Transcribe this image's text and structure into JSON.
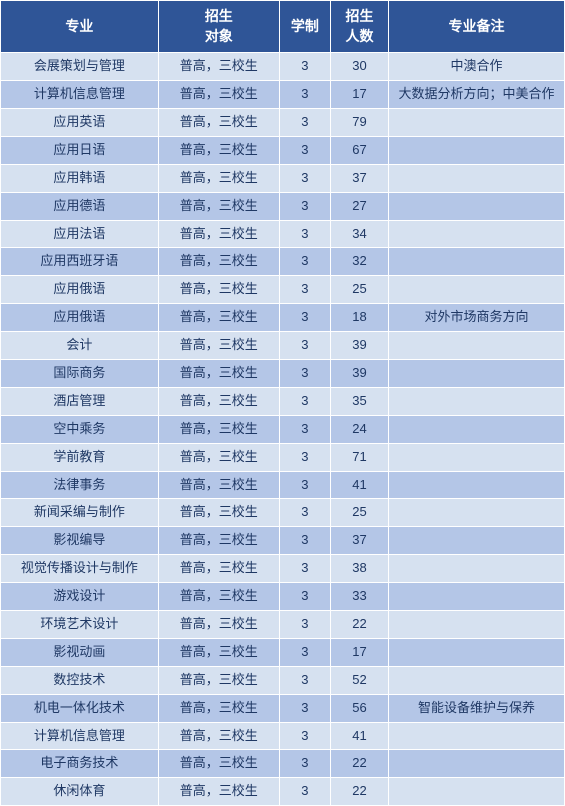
{
  "header": {
    "major": "专业",
    "target": "招生\n对象",
    "duration": "学制",
    "count": "招生\n人数",
    "remark": "专业备注"
  },
  "rows": [
    {
      "major": "会展策划与管理",
      "target": "普高，三校生",
      "duration": "3",
      "count": "30",
      "remark": "中澳合作"
    },
    {
      "major": "计算机信息管理",
      "target": "普高，三校生",
      "duration": "3",
      "count": "17",
      "remark": "大数据分析方向；中美合作"
    },
    {
      "major": "应用英语",
      "target": "普高，三校生",
      "duration": "3",
      "count": "79",
      "remark": ""
    },
    {
      "major": "应用日语",
      "target": "普高，三校生",
      "duration": "3",
      "count": "67",
      "remark": ""
    },
    {
      "major": "应用韩语",
      "target": "普高，三校生",
      "duration": "3",
      "count": "37",
      "remark": ""
    },
    {
      "major": "应用德语",
      "target": "普高，三校生",
      "duration": "3",
      "count": "27",
      "remark": ""
    },
    {
      "major": "应用法语",
      "target": "普高，三校生",
      "duration": "3",
      "count": "34",
      "remark": ""
    },
    {
      "major": "应用西班牙语",
      "target": "普高，三校生",
      "duration": "3",
      "count": "32",
      "remark": ""
    },
    {
      "major": "应用俄语",
      "target": "普高，三校生",
      "duration": "3",
      "count": "25",
      "remark": ""
    },
    {
      "major": "应用俄语",
      "target": "普高，三校生",
      "duration": "3",
      "count": "18",
      "remark": "对外市场商务方向"
    },
    {
      "major": "会计",
      "target": "普高，三校生",
      "duration": "3",
      "count": "39",
      "remark": ""
    },
    {
      "major": "国际商务",
      "target": "普高，三校生",
      "duration": "3",
      "count": "39",
      "remark": ""
    },
    {
      "major": "酒店管理",
      "target": "普高，三校生",
      "duration": "3",
      "count": "35",
      "remark": ""
    },
    {
      "major": "空中乘务",
      "target": "普高，三校生",
      "duration": "3",
      "count": "24",
      "remark": ""
    },
    {
      "major": "学前教育",
      "target": "普高，三校生",
      "duration": "3",
      "count": "71",
      "remark": ""
    },
    {
      "major": "法律事务",
      "target": "普高，三校生",
      "duration": "3",
      "count": "41",
      "remark": ""
    },
    {
      "major": "新闻采编与制作",
      "target": "普高，三校生",
      "duration": "3",
      "count": "25",
      "remark": ""
    },
    {
      "major": "影视编导",
      "target": "普高，三校生",
      "duration": "3",
      "count": "37",
      "remark": ""
    },
    {
      "major": "视觉传播设计与制作",
      "target": "普高，三校生",
      "duration": "3",
      "count": "38",
      "remark": ""
    },
    {
      "major": "游戏设计",
      "target": "普高，三校生",
      "duration": "3",
      "count": "33",
      "remark": ""
    },
    {
      "major": "环境艺术设计",
      "target": "普高，三校生",
      "duration": "3",
      "count": "22",
      "remark": ""
    },
    {
      "major": "影视动画",
      "target": "普高，三校生",
      "duration": "3",
      "count": "17",
      "remark": ""
    },
    {
      "major": "数控技术",
      "target": "普高，三校生",
      "duration": "3",
      "count": "52",
      "remark": ""
    },
    {
      "major": "机电一体化技术",
      "target": "普高，三校生",
      "duration": "3",
      "count": "56",
      "remark": "智能设备维护与保养"
    },
    {
      "major": "计算机信息管理",
      "target": "普高，三校生",
      "duration": "3",
      "count": "41",
      "remark": ""
    },
    {
      "major": "电子商务技术",
      "target": "普高，三校生",
      "duration": "3",
      "count": "22",
      "remark": ""
    },
    {
      "major": "休闲体育",
      "target": "普高，三校生",
      "duration": "3",
      "count": "22",
      "remark": ""
    }
  ],
  "colors": {
    "header_bg": "#2f5597",
    "header_text": "#ffffff",
    "row_odd": "#d6e1f0",
    "row_even": "#b4c6e7",
    "cell_text": "#1f3864",
    "border": "#ffffff"
  },
  "column_widths": {
    "major": 130,
    "target": 100,
    "duration": 42,
    "count": 48,
    "remark": 145
  },
  "font": {
    "header_size": 14,
    "body_size": 13,
    "family": "Microsoft YaHei"
  }
}
